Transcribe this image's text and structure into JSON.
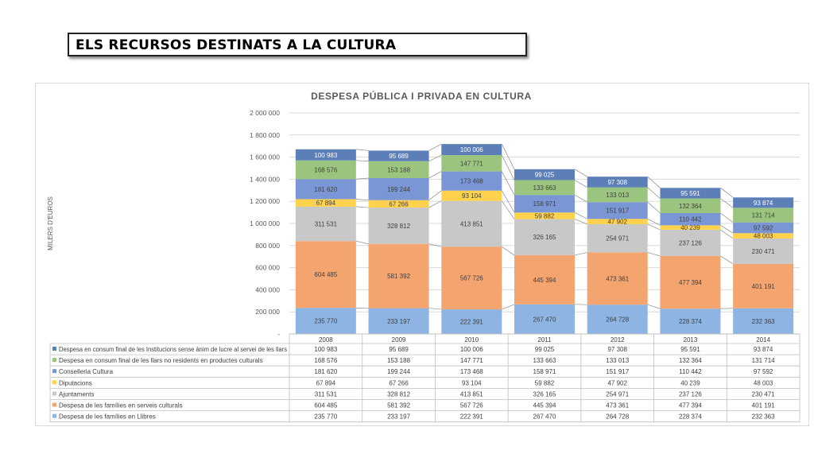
{
  "slide": {
    "title": "ELS RECURSOS DESTINATS A LA CULTURA"
  },
  "chart_data": {
    "type": "bar",
    "stacked": true,
    "title": "DESPESA PÚBLICA I PRIVADA EN CULTURA",
    "ylabel": "MILERS D'EUROS",
    "xlabel": "",
    "ylim": [
      0,
      2000000
    ],
    "yticks": [
      0,
      200000,
      400000,
      600000,
      800000,
      1000000,
      1200000,
      1400000,
      1600000,
      1800000,
      2000000
    ],
    "ytick_labels": [
      "-",
      "200 000",
      "400 000",
      "600 000",
      "800 000",
      "1 000 000",
      "1 200 000",
      "1 400 000",
      "1 600 000",
      "1 800 000",
      "2 000 000"
    ],
    "grid": true,
    "legend": "data-table",
    "categories": [
      "2008",
      "2009",
      "2010",
      "2011",
      "2012",
      "2013",
      "2014"
    ],
    "series": [
      {
        "name": "Despesa de les famílies en Llibres",
        "color": "#8db4e2",
        "values": [
          235770,
          233197,
          222391,
          267470,
          264728,
          228374,
          232363
        ],
        "labels": [
          "235 770",
          "233 197",
          "222 391",
          "267 470",
          "264 728",
          "228 374",
          "232 363"
        ]
      },
      {
        "name": "Despesa de les famílies en serveis culturals",
        "color": "#f4a46e",
        "values": [
          604485,
          581392,
          567726,
          445394,
          473361,
          477394,
          401191
        ],
        "labels": [
          "604 485",
          "581 392",
          "567 726",
          "445 394",
          "473 361",
          "477 394",
          "401 191"
        ]
      },
      {
        "name": "Ajuntaments",
        "color": "#c8c8c8",
        "values": [
          311531,
          328812,
          413851,
          326165,
          254971,
          237126,
          230471
        ],
        "labels": [
          "311 531",
          "328 812",
          "413 851",
          "326 165",
          "254 971",
          "237 126",
          "230 471"
        ]
      },
      {
        "name": "Diputacions",
        "color": "#ffd24d",
        "values": [
          67894,
          67266,
          93104,
          59882,
          47902,
          40239,
          48003
        ],
        "labels": [
          "67 894",
          "67 266",
          "93 104",
          "59 882",
          "47 902",
          "40 239",
          "48 003"
        ]
      },
      {
        "name": "Conselleria Cultura",
        "color": "#7b96d4",
        "values": [
          181620,
          199244,
          173468,
          158971,
          151917,
          110442,
          97592
        ],
        "labels": [
          "181 620",
          "199 244",
          "173 468",
          "158 971",
          "151 917",
          "110 442",
          "97 592"
        ]
      },
      {
        "name": "Despesa en consum final de les llars no residents en productes culturals",
        "color": "#9bc57f",
        "values": [
          168576,
          153188,
          147771,
          133663,
          133013,
          132364,
          131714
        ],
        "labels": [
          "168 576",
          "153 188",
          "147 771",
          "133 663",
          "133 013",
          "132 364",
          "131 714"
        ]
      },
      {
        "name": "Despesa en consum final de les Institucions sense ànim de lucre al servei de les llars",
        "color": "#5d7fb8",
        "values": [
          100983,
          95689,
          100006,
          99025,
          97308,
          95591,
          93874
        ],
        "labels": [
          "100 983",
          "95 689",
          "100 006",
          "99 025",
          "97 308",
          "95 591",
          "93 874"
        ]
      }
    ]
  }
}
